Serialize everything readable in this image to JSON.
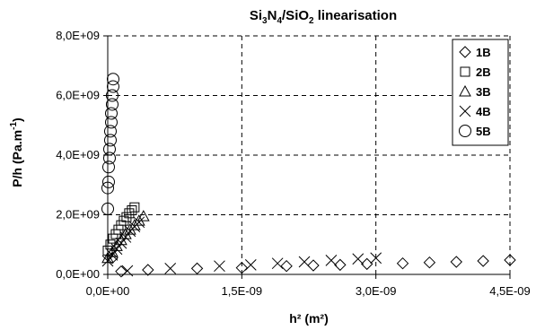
{
  "chart_data": {
    "type": "scatter",
    "title": {
      "parts": [
        {
          "t": "Si",
          "sub": false
        },
        {
          "t": "3",
          "sub": true
        },
        {
          "t": "N",
          "sub": false
        },
        {
          "t": "4",
          "sub": true
        },
        {
          "t": "/SiO",
          "sub": false
        },
        {
          "t": "2",
          "sub": true
        },
        {
          "t": " linearisation",
          "sub": false
        }
      ]
    },
    "xlabel": "h² (m²)",
    "ylabel": {
      "text": "P/h (Pa.m",
      "sup": "-1",
      "close": ")"
    },
    "xlim": [
      0,
      4.5e-09
    ],
    "ylim": [
      0,
      8000000000.0
    ],
    "x_ticks": [
      0,
      1.5e-09,
      3e-09,
      4.5e-09
    ],
    "x_tick_labels": [
      "0,0E+00",
      "1,5E-09",
      "3,0E-09",
      "4,5E-09"
    ],
    "y_ticks": [
      0,
      2000000000.0,
      4000000000.0,
      6000000000.0,
      8000000000.0
    ],
    "y_tick_labels": [
      "0,0E+00",
      "2,0E+09",
      "4,0E+09",
      "6,0E+09",
      "8,0E+09"
    ],
    "grid": "dashed",
    "legend_position": "top-right",
    "series": [
      {
        "name": "1B",
        "marker": "diamond",
        "points": [
          [
            5e-11,
            550000000.0
          ],
          [
            1.5e-10,
            100000000.0
          ],
          [
            4.5e-10,
            150000000.0
          ],
          [
            1e-09,
            200000000.0
          ],
          [
            1.5e-09,
            220000000.0
          ],
          [
            2e-09,
            280000000.0
          ],
          [
            2.3e-09,
            300000000.0
          ],
          [
            2.6e-09,
            320000000.0
          ],
          [
            2.9e-09,
            350000000.0
          ],
          [
            3.3e-09,
            370000000.0
          ],
          [
            3.6e-09,
            400000000.0
          ],
          [
            3.9e-09,
            420000000.0
          ],
          [
            4.2e-09,
            450000000.0
          ],
          [
            4.5e-09,
            480000000.0
          ]
        ]
      },
      {
        "name": "2B",
        "marker": "square",
        "points": [
          [
            0.0,
            800000000.0
          ],
          [
            3e-11,
            1000000000.0
          ],
          [
            6e-11,
            1200000000.0
          ],
          [
            9e-11,
            1350000000.0
          ],
          [
            1.2e-10,
            1500000000.0
          ],
          [
            1.5e-10,
            1650000000.0
          ],
          [
            1.8e-10,
            1800000000.0
          ],
          [
            2.1e-10,
            1920000000.0
          ],
          [
            2.4e-10,
            2050000000.0
          ],
          [
            2.7e-10,
            2150000000.0
          ],
          [
            3e-10,
            2250000000.0
          ]
        ]
      },
      {
        "name": "3B",
        "marker": "triangle",
        "points": [
          [
            0.0,
            550000000.0
          ],
          [
            5e-11,
            750000000.0
          ],
          [
            1e-10,
            950000000.0
          ],
          [
            1.5e-10,
            1150000000.0
          ],
          [
            2e-10,
            1350000000.0
          ],
          [
            2.5e-10,
            1500000000.0
          ],
          [
            3e-10,
            1650000000.0
          ],
          [
            3.5e-10,
            1800000000.0
          ],
          [
            4e-10,
            1950000000.0
          ]
        ]
      },
      {
        "name": "4B",
        "marker": "cross",
        "points": [
          [
            0.0,
            450000000.0
          ],
          [
            5e-11,
            650000000.0
          ],
          [
            1e-10,
            850000000.0
          ],
          [
            1.5e-10,
            1050000000.0
          ],
          [
            2e-10,
            1250000000.0
          ],
          [
            2.5e-10,
            1450000000.0
          ],
          [
            3e-10,
            1600000000.0
          ],
          [
            3.5e-10,
            1750000000.0
          ],
          [
            2.2e-10,
            120000000.0
          ],
          [
            7e-10,
            200000000.0
          ],
          [
            1.25e-09,
            280000000.0
          ],
          [
            1.6e-09,
            320000000.0
          ],
          [
            1.9e-09,
            370000000.0
          ],
          [
            2.2e-09,
            420000000.0
          ],
          [
            2.5e-09,
            470000000.0
          ],
          [
            2.8e-09,
            520000000.0
          ],
          [
            3e-09,
            550000000.0
          ]
        ]
      },
      {
        "name": "5B",
        "marker": "circle",
        "points": [
          [
            0.0,
            2200000000.0
          ],
          [
            0.0,
            2900000000.0
          ],
          [
            1e-11,
            3100000000.0
          ],
          [
            1e-11,
            3600000000.0
          ],
          [
            2e-11,
            3900000000.0
          ],
          [
            2e-11,
            4200000000.0
          ],
          [
            3e-11,
            4500000000.0
          ],
          [
            3e-11,
            4800000000.0
          ],
          [
            4e-11,
            5100000000.0
          ],
          [
            4e-11,
            5400000000.0
          ],
          [
            5e-11,
            5700000000.0
          ],
          [
            5e-11,
            6000000000.0
          ],
          [
            6e-11,
            6300000000.0
          ],
          [
            6e-11,
            6550000000.0
          ]
        ]
      }
    ]
  }
}
